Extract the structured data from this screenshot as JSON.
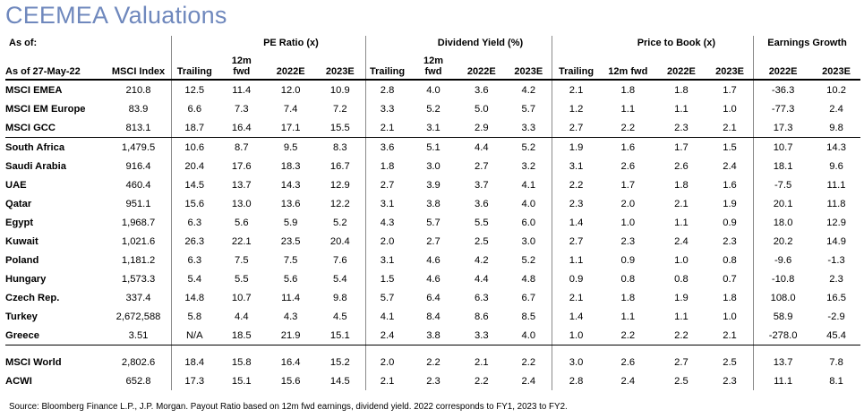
{
  "title": "CEEMEA Valuations",
  "header": {
    "as_of_label": "As of:",
    "as_of_date": "As of 27-May-22",
    "msci_index_label": "MSCI Index",
    "pe_group": "PE Ratio (x)",
    "dy_group": "Dividend Yield (%)",
    "pb_group": "Price to Book (x)",
    "eg_group": "Earnings Growth",
    "trailing": "Trailing",
    "fwd12m_top": "12m",
    "fwd12m_bottom": "fwd",
    "fwd12m_single": "12m fwd",
    "y2022": "2022E",
    "y2023": "2023E"
  },
  "groups": [
    {
      "rows": [
        {
          "name": "MSCI EMEA",
          "index": "210.8",
          "pe": [
            "12.5",
            "11.4",
            "12.0",
            "10.9"
          ],
          "dy": [
            "2.8",
            "4.0",
            "3.6",
            "4.2"
          ],
          "pb": [
            "2.1",
            "1.8",
            "1.8",
            "1.7"
          ],
          "eg": [
            "-36.3",
            "10.2"
          ]
        },
        {
          "name": "MSCI EM Europe",
          "index": "83.9",
          "pe": [
            "6.6",
            "7.3",
            "7.4",
            "7.2"
          ],
          "dy": [
            "3.3",
            "5.2",
            "5.0",
            "5.7"
          ],
          "pb": [
            "1.2",
            "1.1",
            "1.1",
            "1.0"
          ],
          "eg": [
            "-77.3",
            "2.4"
          ]
        },
        {
          "name": "MSCI GCC",
          "index": "813.1",
          "pe": [
            "18.7",
            "16.4",
            "17.1",
            "15.5"
          ],
          "dy": [
            "2.1",
            "3.1",
            "2.9",
            "3.3"
          ],
          "pb": [
            "2.7",
            "2.2",
            "2.3",
            "2.1"
          ],
          "eg": [
            "17.3",
            "9.8"
          ]
        }
      ]
    },
    {
      "rows": [
        {
          "name": "South Africa",
          "index": "1,479.5",
          "pe": [
            "10.6",
            "8.7",
            "9.5",
            "8.3"
          ],
          "dy": [
            "3.6",
            "5.1",
            "4.4",
            "5.2"
          ],
          "pb": [
            "1.9",
            "1.6",
            "1.7",
            "1.5"
          ],
          "eg": [
            "10.7",
            "14.3"
          ]
        },
        {
          "name": "Saudi Arabia",
          "index": "916.4",
          "pe": [
            "20.4",
            "17.6",
            "18.3",
            "16.7"
          ],
          "dy": [
            "1.8",
            "3.0",
            "2.7",
            "3.2"
          ],
          "pb": [
            "3.1",
            "2.6",
            "2.6",
            "2.4"
          ],
          "eg": [
            "18.1",
            "9.6"
          ]
        },
        {
          "name": "UAE",
          "index": "460.4",
          "pe": [
            "14.5",
            "13.7",
            "14.3",
            "12.9"
          ],
          "dy": [
            "2.7",
            "3.9",
            "3.7",
            "4.1"
          ],
          "pb": [
            "2.2",
            "1.7",
            "1.8",
            "1.6"
          ],
          "eg": [
            "-7.5",
            "11.1"
          ]
        },
        {
          "name": "Qatar",
          "index": "951.1",
          "pe": [
            "15.6",
            "13.0",
            "13.6",
            "12.2"
          ],
          "dy": [
            "3.1",
            "3.8",
            "3.6",
            "4.0"
          ],
          "pb": [
            "2.3",
            "2.0",
            "2.1",
            "1.9"
          ],
          "eg": [
            "20.1",
            "11.8"
          ]
        },
        {
          "name": "Egypt",
          "index": "1,968.7",
          "pe": [
            "6.3",
            "5.6",
            "5.9",
            "5.2"
          ],
          "dy": [
            "4.3",
            "5.7",
            "5.5",
            "6.0"
          ],
          "pb": [
            "1.4",
            "1.0",
            "1.1",
            "0.9"
          ],
          "eg": [
            "18.0",
            "12.9"
          ]
        },
        {
          "name": "Kuwait",
          "index": "1,021.6",
          "pe": [
            "26.3",
            "22.1",
            "23.5",
            "20.4"
          ],
          "dy": [
            "2.0",
            "2.7",
            "2.5",
            "3.0"
          ],
          "pb": [
            "2.7",
            "2.3",
            "2.4",
            "2.3"
          ],
          "eg": [
            "20.2",
            "14.9"
          ]
        },
        {
          "name": "Poland",
          "index": "1,181.2",
          "pe": [
            "6.3",
            "7.5",
            "7.5",
            "7.6"
          ],
          "dy": [
            "3.1",
            "4.6",
            "4.2",
            "5.2"
          ],
          "pb": [
            "1.1",
            "0.9",
            "1.0",
            "0.8"
          ],
          "eg": [
            "-9.6",
            "-1.3"
          ]
        },
        {
          "name": "Hungary",
          "index": "1,573.3",
          "pe": [
            "5.4",
            "5.5",
            "5.6",
            "5.4"
          ],
          "dy": [
            "1.5",
            "4.6",
            "4.4",
            "4.8"
          ],
          "pb": [
            "0.9",
            "0.8",
            "0.8",
            "0.7"
          ],
          "eg": [
            "-10.8",
            "2.3"
          ]
        },
        {
          "name": "Czech Rep.",
          "index": "337.4",
          "pe": [
            "14.8",
            "10.7",
            "11.4",
            "9.8"
          ],
          "dy": [
            "5.7",
            "6.4",
            "6.3",
            "6.7"
          ],
          "pb": [
            "2.1",
            "1.8",
            "1.9",
            "1.8"
          ],
          "eg": [
            "108.0",
            "16.5"
          ]
        },
        {
          "name": "Turkey",
          "index": "2,672,588",
          "pe": [
            "5.8",
            "4.4",
            "4.3",
            "4.5"
          ],
          "dy": [
            "4.1",
            "8.4",
            "8.6",
            "8.5"
          ],
          "pb": [
            "1.4",
            "1.1",
            "1.1",
            "1.0"
          ],
          "eg": [
            "58.9",
            "-2.9"
          ]
        },
        {
          "name": "Greece",
          "index": "3.51",
          "pe": [
            "N/A",
            "18.5",
            "21.9",
            "15.1"
          ],
          "dy": [
            "2.4",
            "3.8",
            "3.3",
            "4.0"
          ],
          "pb": [
            "1.0",
            "2.2",
            "2.2",
            "2.1"
          ],
          "eg": [
            "-278.0",
            "45.4"
          ]
        }
      ]
    },
    {
      "rows": [
        {
          "name": "MSCI World",
          "index": "2,802.6",
          "pe": [
            "18.4",
            "15.8",
            "16.4",
            "15.2"
          ],
          "dy": [
            "2.0",
            "2.2",
            "2.1",
            "2.2"
          ],
          "pb": [
            "3.0",
            "2.6",
            "2.7",
            "2.5"
          ],
          "eg": [
            "13.7",
            "7.8"
          ]
        },
        {
          "name": "ACWI",
          "index": "652.8",
          "pe": [
            "17.3",
            "15.1",
            "15.6",
            "14.5"
          ],
          "dy": [
            "2.1",
            "2.3",
            "2.2",
            "2.4"
          ],
          "pb": [
            "2.8",
            "2.4",
            "2.5",
            "2.3"
          ],
          "eg": [
            "11.1",
            "8.1"
          ]
        }
      ]
    }
  ],
  "source": "Source: Bloomberg Finance L.P., J.P. Morgan. Payout Ratio based on 12m fwd earnings, dividend yield. 2022 corresponds to FY1, 2023 to FY2."
}
